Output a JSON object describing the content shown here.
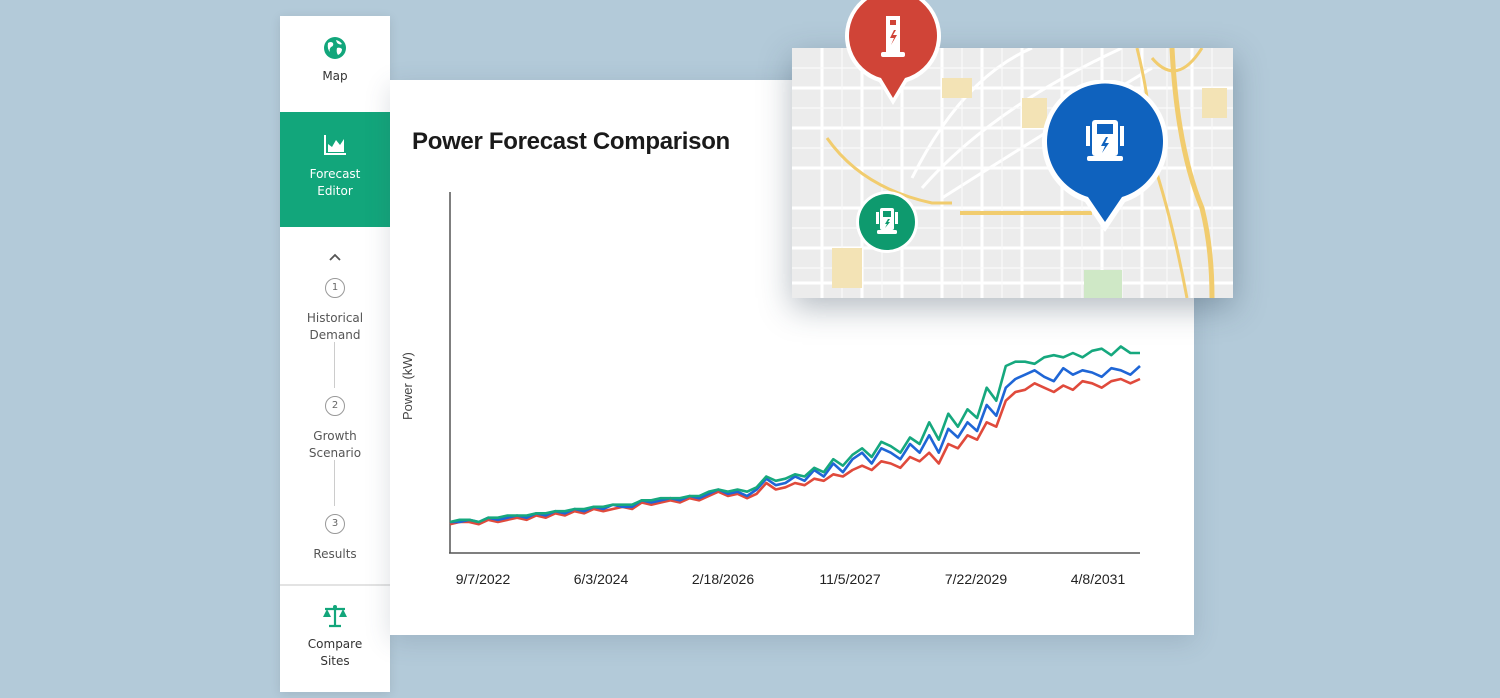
{
  "sidebar": {
    "map": {
      "label": "Map",
      "icon": "globe-icon"
    },
    "forecast_editor": {
      "label_line1": "Forecast",
      "label_line2": "Editor",
      "icon": "area-chart-icon",
      "active": true,
      "color": "#12a67b"
    },
    "collapse_icon": "chevron-up-icon",
    "steps": [
      {
        "number": "1",
        "label_line1": "Historical",
        "label_line2": "Demand"
      },
      {
        "number": "2",
        "label_line1": "Growth",
        "label_line2": "Scenario"
      },
      {
        "number": "3",
        "label_line1": "Results",
        "label_line2": ""
      }
    ],
    "compare_sites": {
      "label_line1": "Compare",
      "label_line2": "Sites",
      "icon": "scale-icon"
    }
  },
  "panel": {
    "title": "Power Forecast Comparison"
  },
  "map": {
    "pins": [
      {
        "name": "site-red",
        "color": "#d04437",
        "icon": "charging-post-icon"
      },
      {
        "name": "site-blue",
        "color": "#0f62be",
        "icon": "charging-station-icon"
      },
      {
        "name": "site-green",
        "color": "#0e9a6e",
        "icon": "charging-station-icon"
      }
    ]
  },
  "chart_data": {
    "type": "line",
    "title": "Power Forecast Comparison",
    "xlabel": "",
    "ylabel": "Power (kW)",
    "x_tick_labels": [
      "9/7/2022",
      "6/3/2024",
      "2/18/2026",
      "11/5/2027",
      "7/22/2029",
      "4/8/2031"
    ],
    "grid": false,
    "legend": null,
    "series": [
      {
        "name": "Site Red",
        "color": "#e04a3c",
        "values": [
          5,
          6,
          6,
          5,
          7,
          6,
          7,
          8,
          7,
          9,
          8,
          10,
          9,
          11,
          10,
          12,
          11,
          12,
          13,
          12,
          15,
          14,
          15,
          16,
          15,
          17,
          16,
          18,
          20,
          18,
          19,
          17,
          19,
          24,
          21,
          22,
          24,
          23,
          26,
          25,
          28,
          27,
          30,
          32,
          30,
          34,
          33,
          31,
          36,
          34,
          38,
          33,
          42,
          40,
          46,
          44,
          52,
          50,
          62,
          66,
          67,
          70,
          68,
          66,
          69,
          67,
          71,
          70,
          68,
          71,
          72,
          70,
          72
        ]
      },
      {
        "name": "Site Blue",
        "color": "#1f66d6",
        "values": [
          6,
          6,
          7,
          6,
          8,
          7,
          8,
          9,
          8,
          10,
          9,
          11,
          10,
          12,
          11,
          13,
          12,
          14,
          13,
          13,
          16,
          15,
          16,
          17,
          16,
          18,
          17,
          19,
          21,
          19,
          20,
          18,
          21,
          26,
          23,
          24,
          27,
          25,
          30,
          27,
          33,
          29,
          35,
          38,
          33,
          40,
          38,
          35,
          42,
          38,
          46,
          38,
          49,
          45,
          52,
          48,
          60,
          55,
          68,
          72,
          74,
          76,
          73,
          71,
          77,
          74,
          76,
          75,
          73,
          77,
          76,
          74,
          78
        ]
      },
      {
        "name": "Site Green",
        "color": "#16a87e",
        "values": [
          6,
          7,
          7,
          6,
          8,
          8,
          9,
          9,
          9,
          10,
          10,
          11,
          11,
          12,
          12,
          13,
          13,
          14,
          14,
          14,
          16,
          16,
          17,
          17,
          17,
          18,
          18,
          20,
          21,
          20,
          21,
          20,
          22,
          27,
          25,
          26,
          28,
          27,
          31,
          29,
          35,
          32,
          37,
          40,
          36,
          43,
          41,
          38,
          45,
          42,
          52,
          44,
          56,
          50,
          58,
          54,
          68,
          62,
          78,
          80,
          80,
          79,
          82,
          83,
          82,
          84,
          82,
          85,
          86,
          83,
          87,
          84,
          84
        ]
      }
    ]
  }
}
